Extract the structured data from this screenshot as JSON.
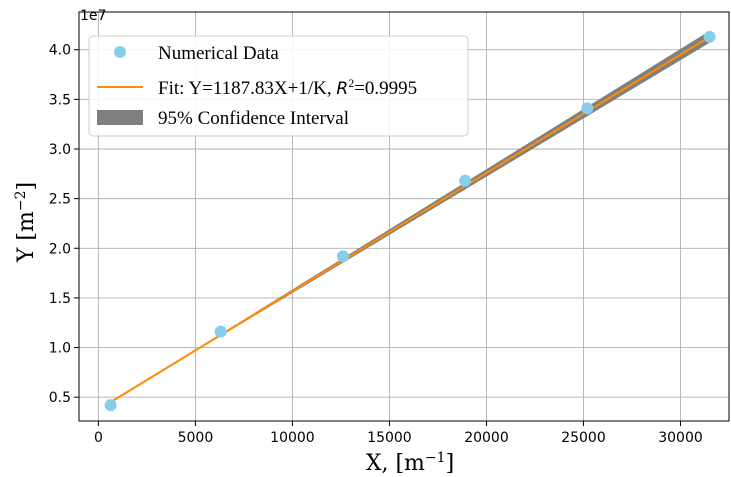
{
  "chart_data": {
    "type": "scatter",
    "multiplier_label": "1e7",
    "xlabel": "X,  [m⁻¹]",
    "ylabel": "Y  [m⁻²]",
    "xlim": [
      -1000,
      32500
    ],
    "ylim": [
      2600000,
      43800000
    ],
    "grid": true,
    "legend_position": "top-left",
    "x_ticks": [
      {
        "value": 0,
        "label": "0"
      },
      {
        "value": 5000,
        "label": "5000"
      },
      {
        "value": 10000,
        "label": "10000"
      },
      {
        "value": 15000,
        "label": "15000"
      },
      {
        "value": 20000,
        "label": "20000"
      },
      {
        "value": 25000,
        "label": "25000"
      },
      {
        "value": 30000,
        "label": "30000"
      }
    ],
    "y_ticks": [
      {
        "value": 5000000,
        "label": "0.5"
      },
      {
        "value": 10000000,
        "label": "1.0"
      },
      {
        "value": 15000000,
        "label": "1.5"
      },
      {
        "value": 20000000,
        "label": "2.0"
      },
      {
        "value": 25000000,
        "label": "2.5"
      },
      {
        "value": 30000000,
        "label": "3.0"
      },
      {
        "value": 35000000,
        "label": "3.5"
      },
      {
        "value": 40000000,
        "label": "4.0"
      }
    ],
    "series": [
      {
        "name": "Numerical Data",
        "kind": "scatter",
        "color": "#87ceeb",
        "x": [
          630,
          6300,
          12600,
          18900,
          25200,
          31500
        ],
        "y": [
          4200000,
          11600000,
          19200000,
          26800000,
          34100000,
          41300000
        ]
      },
      {
        "name": "Fit: Y=1187.83X+1/K, R²=0.9995",
        "kind": "line",
        "color": "#ff8c00",
        "x": [
          630,
          31500
        ],
        "y": [
          4500000,
          41300000
        ]
      },
      {
        "name": "95% Confidence Interval",
        "kind": "band",
        "color": "#808080",
        "x": [
          630,
          31500
        ],
        "y_lower": [
          4500000,
          40700000
        ],
        "y_upper": [
          4500000,
          41900000
        ]
      }
    ],
    "legend": {
      "scatter_label": "Numerical Data",
      "fit_prefix": "Fit: Y=1187.83X+1/K, ",
      "fit_r_symbol": "R",
      "fit_r_exp": "2",
      "fit_suffix": "=0.9995",
      "ci_label": "95% Confidence Interval"
    }
  }
}
